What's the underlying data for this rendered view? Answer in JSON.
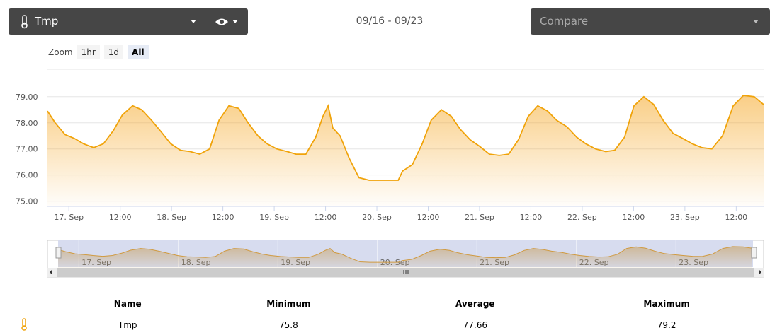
{
  "toolbar": {
    "sensor": "Tmp",
    "date_range": "09/16 - 09/23",
    "compare": "Compare"
  },
  "zoom": {
    "label": "Zoom",
    "buttons": [
      "1hr",
      "1d",
      "All"
    ]
  },
  "chart_data": {
    "type": "area",
    "xlim": [
      19,
      186.4
    ],
    "ylim": [
      74.8,
      80.05
    ],
    "grid": true,
    "xticks": [
      {
        "value": 24,
        "label": "17. Sep"
      },
      {
        "value": 36,
        "label": "12:00"
      },
      {
        "value": 48,
        "label": "18. Sep"
      },
      {
        "value": 60,
        "label": "12:00"
      },
      {
        "value": 72,
        "label": "19. Sep"
      },
      {
        "value": 84,
        "label": "12:00"
      },
      {
        "value": 96,
        "label": "20. Sep"
      },
      {
        "value": 108,
        "label": "12:00"
      },
      {
        "value": 120,
        "label": "21. Sep"
      },
      {
        "value": 132,
        "label": "12:00"
      },
      {
        "value": 144,
        "label": "22. Sep"
      },
      {
        "value": 156,
        "label": "12:00"
      },
      {
        "value": 168,
        "label": "23. Sep"
      },
      {
        "value": 180,
        "label": "12:00"
      }
    ],
    "yticks": [
      {
        "value": 75,
        "label": "75.00"
      },
      {
        "value": 76,
        "label": "76.00"
      },
      {
        "value": 77,
        "label": "77.00"
      },
      {
        "value": 78,
        "label": "78.00"
      },
      {
        "value": 79,
        "label": "79.00"
      }
    ],
    "series": [
      {
        "name": "Tmp",
        "color": "#f0a30a",
        "x": [
          19,
          20.8,
          23.1,
          25.3,
          27.4,
          29.8,
          32.1,
          34.4,
          36.5,
          38.9,
          41,
          43.3,
          45.6,
          47.8,
          50.1,
          52.3,
          54.6,
          56.9,
          59.1,
          61.4,
          63.7,
          65.9,
          68.2,
          70.3,
          72.6,
          75,
          77.1,
          79.4,
          81.7,
          83.4,
          84.6,
          85.7,
          87.4,
          89.5,
          91.8,
          94.2,
          97.5,
          101,
          102,
          104.3,
          106.6,
          108.7,
          111.1,
          113.4,
          115.5,
          117.8,
          120,
          122.3,
          124.6,
          126.8,
          129.1,
          131.4,
          133.6,
          135.9,
          138,
          140.4,
          142.7,
          144.8,
          147.1,
          149.5,
          151.6,
          153.9,
          156.1,
          158.4,
          160.7,
          162.9,
          165.2,
          167.5,
          169.7,
          172,
          174.3,
          176.8,
          179.3,
          181.7,
          184.2,
          186.4
        ],
        "values": [
          78.45,
          78.0,
          77.55,
          77.4,
          77.2,
          77.05,
          77.2,
          77.7,
          78.3,
          78.65,
          78.5,
          78.1,
          77.65,
          77.2,
          76.95,
          76.9,
          76.8,
          77.0,
          78.1,
          78.65,
          78.55,
          78.0,
          77.5,
          77.2,
          77.0,
          76.9,
          76.8,
          76.8,
          77.45,
          78.25,
          78.65,
          77.8,
          77.5,
          76.65,
          75.9,
          75.8,
          75.8,
          75.8,
          76.15,
          76.4,
          77.2,
          78.1,
          78.5,
          78.25,
          77.75,
          77.35,
          77.1,
          76.8,
          76.75,
          76.8,
          77.35,
          78.25,
          78.65,
          78.45,
          78.1,
          77.85,
          77.45,
          77.2,
          77.0,
          76.9,
          76.95,
          77.45,
          78.65,
          79.0,
          78.7,
          78.1,
          77.6,
          77.4,
          77.2,
          77.05,
          77.0,
          77.5,
          78.65,
          79.05,
          79.0,
          78.7
        ]
      }
    ]
  },
  "table": {
    "headers": [
      "Name",
      "Minimum",
      "Average",
      "Maximum"
    ],
    "rows": [
      [
        "Tmp",
        75.8,
        77.66,
        79.2
      ]
    ]
  }
}
